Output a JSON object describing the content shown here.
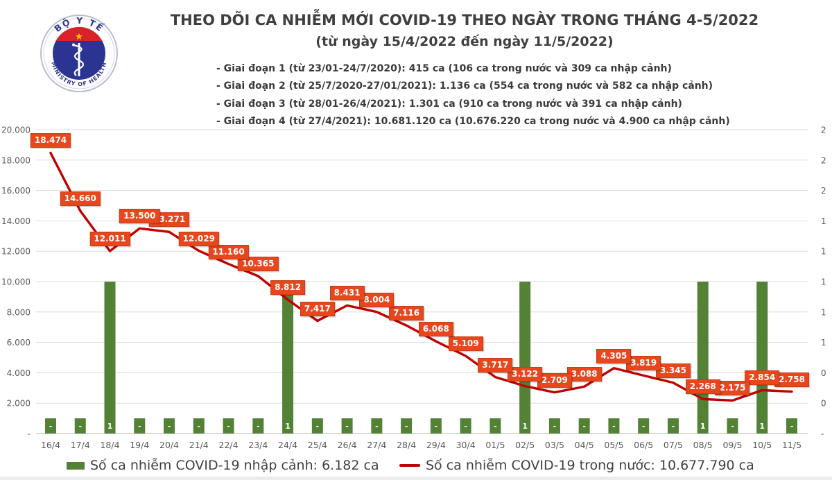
{
  "logo": {
    "top_text": "BỘ Y TẾ",
    "bottom_text": "MINISTRY OF HEALTH"
  },
  "header": {
    "title": "THEO DÕI CA NHIỄM MỚI COVID-19 THEO NGÀY TRONG THÁNG 4-5/2022",
    "subtitle": "(từ ngày 15/4/2022 đến ngày 11/5/2022)",
    "phases": [
      "- Giai đoạn 1 (từ 23/01-24/7/2020): 415 ca (106 ca trong nước và 309 ca nhập cảnh)",
      "- Giai đoạn 2 (từ 25/7/2020-27/01/2021): 1.136 ca (554 ca trong nước và 582 ca nhập cảnh)",
      "- Giai đoạn 3 (từ 28/01-26/4/2021): 1.301 ca (910 ca trong nước và 391 ca nhập cảnh)",
      "- Giai đoạn 4 (từ 27/4/2021): 10.681.120 ca (10.676.220 ca trong nước và 4.900 ca nhập cảnh)"
    ]
  },
  "chart_data": {
    "type": "line+bar combo",
    "title": "THEO DÕI CA NHIỄM MỚI COVID-19 THEO NGÀY TRONG THÁNG 4-5/2022",
    "grid": true,
    "legend_position": "bottom",
    "categories": [
      "16/4",
      "17/4",
      "18/4",
      "19/4",
      "20/4",
      "21/4",
      "22/4",
      "23/4",
      "24/4",
      "25/4",
      "26/4",
      "27/4",
      "28/4",
      "29/4",
      "30/4",
      "01/5",
      "02/5",
      "03/5",
      "04/5",
      "05/5",
      "06/5",
      "07/5",
      "08/5",
      "09/5",
      "10/5",
      "11/5"
    ],
    "series": [
      {
        "name": "Số ca nhiễm COVID-19 trong nước",
        "type": "line",
        "axis": "primary",
        "color": "#c00000",
        "point_label_bg": "#e8471e",
        "values": [
          18474,
          14660,
          12011,
          13500,
          13271,
          12029,
          11160,
          10365,
          8812,
          7417,
          8431,
          8004,
          7116,
          6068,
          5109,
          3717,
          3122,
          2709,
          3088,
          4305,
          3819,
          3345,
          2268,
          2175,
          2854,
          2758
        ],
        "point_labels": [
          "18.474",
          "14.660",
          "12.011",
          "13.500",
          "13.271",
          "12.029",
          "11.160",
          "10.365",
          "8.812",
          "7.417",
          "8.431",
          "8.004",
          "7.116",
          "6.068",
          "5.109",
          "3.717",
          "3.122",
          "2.709",
          "3.088",
          "4.305",
          "3.819",
          "3.345",
          "2.268",
          "2.175",
          "2.854",
          "2.758"
        ]
      },
      {
        "name": "Số ca nhiễm COVID-19 nhập cảnh",
        "type": "bar",
        "axis": "secondary",
        "color": "#538135",
        "values": [
          0.1,
          0.1,
          1,
          0.1,
          0.1,
          0.1,
          0.1,
          0.1,
          1,
          0.1,
          0.1,
          0.1,
          0.1,
          0.1,
          0.1,
          0.1,
          1,
          0.1,
          0.1,
          0.1,
          0.1,
          0.1,
          1,
          0.1,
          1,
          0.1
        ],
        "bar_labels": [
          "-",
          "-",
          "1",
          "-",
          "-",
          "-",
          "-",
          "-",
          "1",
          "-",
          "-",
          "-",
          "-",
          "-",
          "-",
          "-",
          "1",
          "-",
          "-",
          "-",
          "-",
          "-",
          "1",
          "-",
          "1",
          "-"
        ]
      }
    ],
    "primary_axis": {
      "min": 0,
      "max": 20000,
      "step": 2000,
      "tick_labels_top_to_bottom": [
        "20.000",
        "18.000",
        "16.000",
        "14.000",
        "12.000",
        "10.000",
        "8.000",
        "6.000",
        "4.000",
        "2.000",
        "-"
      ]
    },
    "secondary_axis": {
      "min": 0,
      "max": 2,
      "step": 0.2,
      "tick_labels_top_to_bottom": [
        "2",
        "2",
        "2",
        "1",
        "1",
        "1",
        "1",
        "1",
        "0",
        "0",
        "-"
      ]
    }
  },
  "legend": {
    "bar_label": "Số ca nhiễm COVID-19 nhập cảnh: 6.182 ca",
    "line_label": "Số ca nhiễm COVID-19 trong nước: 10.677.790 ca"
  },
  "theme": {
    "title_text": "#3f3f3f",
    "axis_text": "#595959",
    "gridline": "#dcdcdc",
    "axis_line": "#b7b7b7",
    "logo_navy": "#2b3490",
    "logo_red": "#d8232a",
    "logo_star": "#ffd500"
  }
}
